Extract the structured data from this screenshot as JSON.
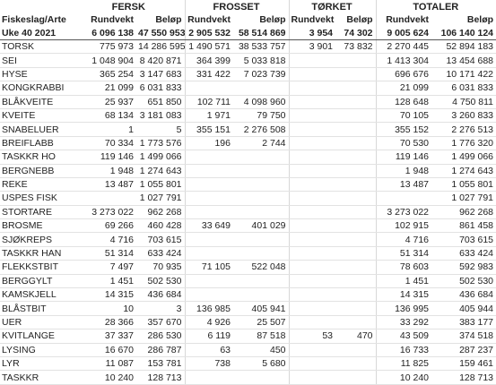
{
  "table": {
    "groups": [
      "FERSK",
      "FROSSET",
      "TØRKET",
      "TOTALER"
    ],
    "columns": [
      "Fiskeslag/Arte",
      "Rundvekt",
      "Beløp",
      "Rundvekt",
      "Beløp",
      "Rundvekt",
      "Beløp",
      "Rundvekt",
      "Beløp"
    ],
    "totals": [
      "Uke 40 2021",
      "6 096 138",
      "47 550 953",
      "2 905 532",
      "58 514 869",
      "3 954",
      "74 302",
      "9 005 624",
      "106 140 124"
    ],
    "rows": [
      [
        "TORSK",
        "775 973",
        "14 286 595",
        "1 490 571",
        "38 533 757",
        "3 901",
        "73 832",
        "2 270 445",
        "52 894 183"
      ],
      [
        "SEI",
        "1 048 904",
        "8 420 871",
        "364 399",
        "5 033 818",
        null,
        null,
        "1 413 304",
        "13 454 688"
      ],
      [
        "HYSE",
        "365 254",
        "3 147 683",
        "331 422",
        "7 023 739",
        null,
        null,
        "696 676",
        "10 171 422"
      ],
      [
        "KONGKRABBI",
        "21 099",
        "6 031 833",
        null,
        null,
        null,
        null,
        "21 099",
        "6 031 833"
      ],
      [
        "BLÅKVEITE",
        "25 937",
        "651 850",
        "102 711",
        "4 098 960",
        null,
        null,
        "128 648",
        "4 750 811"
      ],
      [
        "KVEITE",
        "68 134",
        "3 181 083",
        "1 971",
        "79 750",
        null,
        null,
        "70 105",
        "3 260 833"
      ],
      [
        "SNABELUER",
        "1",
        "5",
        "355 151",
        "2 276 508",
        null,
        null,
        "355 152",
        "2 276 513"
      ],
      [
        "BREIFLABB",
        "70 334",
        "1 773 576",
        "196",
        "2 744",
        null,
        null,
        "70 530",
        "1 776 320"
      ],
      [
        "TASKKR HO",
        "119 146",
        "1 499 066",
        null,
        null,
        null,
        null,
        "119 146",
        "1 499 066"
      ],
      [
        "BERGNEBB",
        "1 948",
        "1 274 643",
        null,
        null,
        null,
        null,
        "1 948",
        "1 274 643"
      ],
      [
        "REKE",
        "13 487",
        "1 055 801",
        null,
        null,
        null,
        null,
        "13 487",
        "1 055 801"
      ],
      [
        "USPES FISK",
        null,
        "1 027 791",
        null,
        null,
        null,
        null,
        null,
        "1 027 791"
      ],
      [
        "STORTARE",
        "3 273 022",
        "962 268",
        null,
        null,
        null,
        null,
        "3 273 022",
        "962 268"
      ],
      [
        "BROSME",
        "69 266",
        "460 428",
        "33 649",
        "401 029",
        null,
        null,
        "102 915",
        "861 458"
      ],
      [
        "SJØKREPS",
        "4 716",
        "703 615",
        null,
        null,
        null,
        null,
        "4 716",
        "703 615"
      ],
      [
        "TASKKR HAN",
        "51 314",
        "633 424",
        null,
        null,
        null,
        null,
        "51 314",
        "633 424"
      ],
      [
        "FLEKKSTBIT",
        "7 497",
        "70 935",
        "71 105",
        "522 048",
        null,
        null,
        "78 603",
        "592 983"
      ],
      [
        "BERGGYLT",
        "1 451",
        "502 530",
        null,
        null,
        null,
        null,
        "1 451",
        "502 530"
      ],
      [
        "KAMSKJELL",
        "14 315",
        "436 684",
        null,
        null,
        null,
        null,
        "14 315",
        "436 684"
      ],
      [
        "BLÅSTBIT",
        "10",
        "3",
        "136 985",
        "405 941",
        null,
        null,
        "136 995",
        "405 944"
      ],
      [
        "UER",
        "28 366",
        "357 670",
        "4 926",
        "25 507",
        null,
        null,
        "33 292",
        "383 177"
      ],
      [
        "KVITLANGE",
        "37 337",
        "286 530",
        "6 119",
        "87 518",
        "53",
        "470",
        "43 509",
        "374 518"
      ],
      [
        "LYSING",
        "16 670",
        "286 787",
        "63",
        "450",
        null,
        null,
        "16 733",
        "287 237"
      ],
      [
        "LYR",
        "11 087",
        "153 781",
        "738",
        "5 680",
        null,
        null,
        "11 825",
        "159 461"
      ],
      [
        "TASKKR",
        "10 240",
        "128 713",
        null,
        null,
        null,
        null,
        "10 240",
        "128 713"
      ]
    ]
  }
}
